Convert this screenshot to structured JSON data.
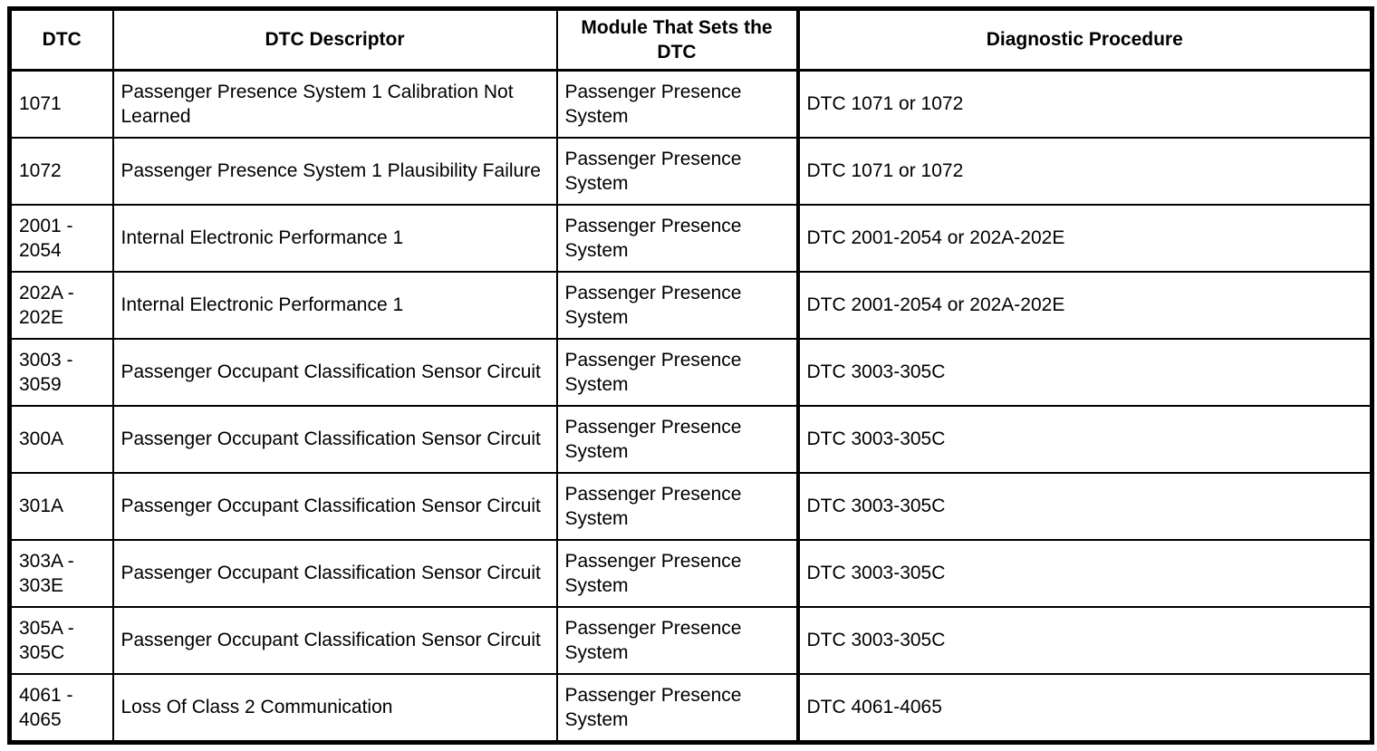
{
  "colors": {
    "border": "#000000",
    "background": "#ffffff",
    "text": "#000000"
  },
  "table": {
    "headers": [
      "DTC",
      "DTC Descriptor",
      "Module That Sets the DTC",
      "Diagnostic Procedure"
    ],
    "rows": [
      {
        "dtc": "1071",
        "descriptor": "Passenger Presence System 1 Calibration Not Learned",
        "module": "Passenger Presence System",
        "procedure": "DTC 1071 or 1072"
      },
      {
        "dtc": "1072",
        "descriptor": "Passenger Presence System 1 Plausibility Failure",
        "module": "Passenger Presence System",
        "procedure": "DTC 1071 or 1072"
      },
      {
        "dtc": "2001 - 2054",
        "descriptor": "Internal Electronic Performance 1",
        "module": "Passenger Presence System",
        "procedure": "DTC 2001-2054 or 202A-202E"
      },
      {
        "dtc": "202A - 202E",
        "descriptor": "Internal Electronic Performance 1",
        "module": "Passenger Presence System",
        "procedure": "DTC 2001-2054 or 202A-202E"
      },
      {
        "dtc": "3003 - 3059",
        "descriptor": "Passenger Occupant Classification Sensor Circuit",
        "module": "Passenger Presence System",
        "procedure": "DTC 3003-305C"
      },
      {
        "dtc": "300A",
        "descriptor": "Passenger Occupant Classification Sensor Circuit",
        "module": "Passenger Presence System",
        "procedure": "DTC 3003-305C"
      },
      {
        "dtc": "301A",
        "descriptor": "Passenger Occupant Classification Sensor Circuit",
        "module": "Passenger Presence System",
        "procedure": "DTC 3003-305C"
      },
      {
        "dtc": "303A - 303E",
        "descriptor": "Passenger Occupant Classification Sensor Circuit",
        "module": "Passenger Presence System",
        "procedure": "DTC 3003-305C"
      },
      {
        "dtc": "305A - 305C",
        "descriptor": "Passenger Occupant Classification Sensor Circuit",
        "module": "Passenger Presence System",
        "procedure": "DTC 3003-305C"
      },
      {
        "dtc": "4061 - 4065",
        "descriptor": "Loss Of Class 2 Communication",
        "module": "Passenger Presence System",
        "procedure": "DTC 4061-4065"
      }
    ]
  }
}
